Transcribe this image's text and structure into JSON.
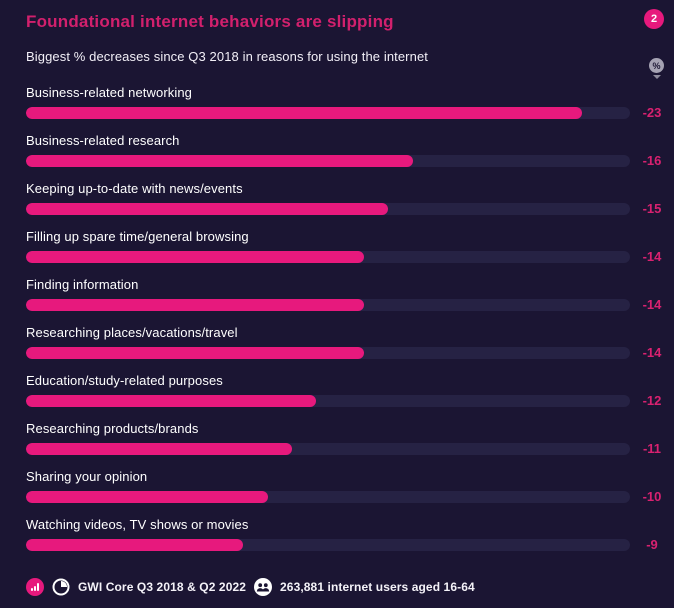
{
  "header": {
    "title": "Foundational internet behaviors are slipping",
    "badge_count": "2",
    "subtitle": "Biggest % decreases since Q3 2018 in reasons for using the internet"
  },
  "controls": {
    "percent_toggle_symbol": "%"
  },
  "chart_data": {
    "type": "bar",
    "orientation": "horizontal",
    "title": "Foundational internet behaviors are slipping",
    "subtitle": "Biggest % decreases since Q3 2018 in reasons for using the internet",
    "categories": [
      "Business-related networking",
      "Business-related research",
      "Keeping up-to-date with news/events",
      "Filling up spare time/general browsing",
      "Finding information",
      "Researching places/vacations/travel",
      "Education/study-related purposes",
      "Researching products/brands",
      "Sharing your opinion",
      "Watching videos, TV shows or movies"
    ],
    "values": [
      -23,
      -16,
      -15,
      -14,
      -14,
      -14,
      -12,
      -11,
      -10,
      -9
    ],
    "value_labels": [
      "-23",
      "-16",
      "-15",
      "-14",
      "-14",
      "-14",
      "-12",
      "-11",
      "-10",
      "-9"
    ],
    "xlim": [
      0,
      25
    ],
    "grid": false,
    "legend": false,
    "bar_color": "#e7197d",
    "track_color": "#262244",
    "value_label_color": "#d92170"
  },
  "footer": {
    "source_label": "GWI Core Q3 2018 & Q2 2022",
    "audience_label": "263,881 internet users aged 16-64"
  },
  "colors": {
    "background": "#1b1533",
    "accent_pink": "#e7197d",
    "title_pink": "#d2206d",
    "track_navy": "#262244",
    "text_white": "#ffffff"
  }
}
